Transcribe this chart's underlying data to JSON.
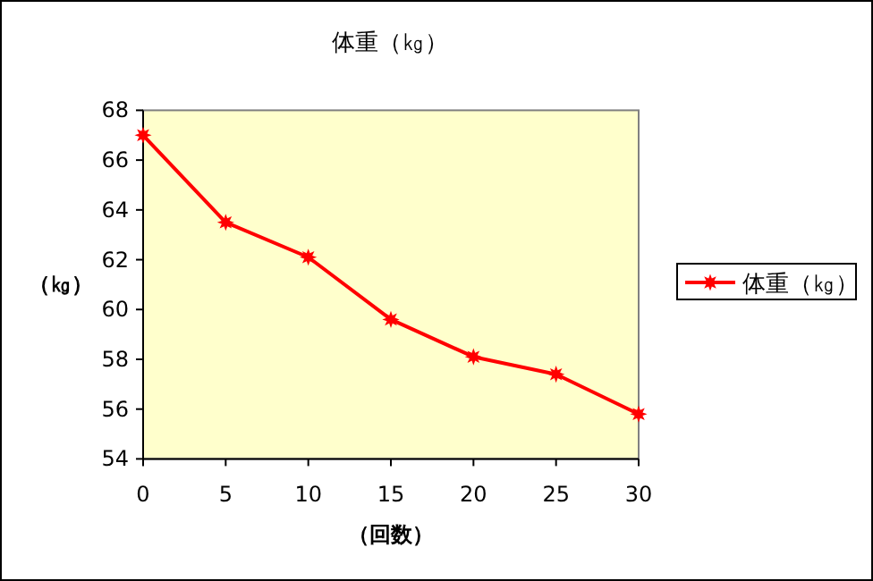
{
  "chart_data": {
    "type": "line",
    "title": "体重（㎏）",
    "xlabel": "（回数）",
    "ylabel": "（㎏）",
    "x": [
      0,
      5,
      10,
      15,
      20,
      25,
      30
    ],
    "series": [
      {
        "name": "体重（㎏）",
        "color": "#ff0000",
        "values": [
          67.0,
          63.5,
          62.1,
          59.6,
          58.1,
          57.4,
          55.8
        ]
      }
    ],
    "xlim": [
      0,
      30
    ],
    "xticks": [
      0,
      5,
      10,
      15,
      20,
      25,
      30
    ],
    "ylim": [
      54,
      68
    ],
    "yticks": [
      54,
      56,
      58,
      60,
      62,
      64,
      66,
      68
    ],
    "grid": false,
    "legend": "right",
    "marker": "star",
    "line_style": "solid"
  }
}
